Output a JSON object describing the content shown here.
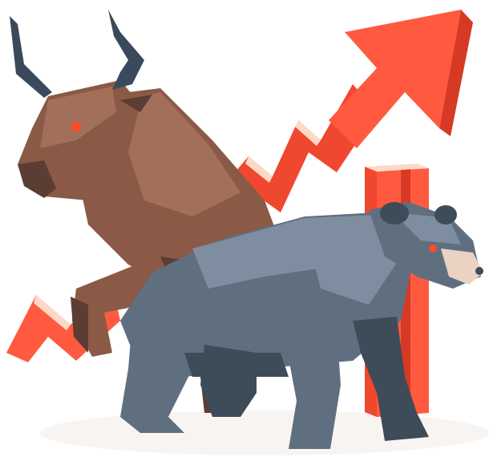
{
  "scene": {
    "subjects": [
      "bull",
      "bear",
      "rising-arrow",
      "bar-column"
    ],
    "colors": {
      "background": "#ffffff",
      "arrow_light": "#ff5a40",
      "arrow_mid": "#f0472f",
      "arrow_dark": "#d63a25",
      "arrow_highlight": "#ffd9c6",
      "bull_light": "#a2705a",
      "bull_mid": "#8a5a47",
      "bull_dark": "#5b3d33",
      "bull_belly": "#c9a08c",
      "horn": "#3a4a5c",
      "bear_light": "#7e8ea0",
      "bear_mid": "#5f6f80",
      "bear_dark": "#3e4b58",
      "bear_snout": "#ead3c3",
      "eye": "#ff4a2a",
      "shadow": "#f3ece7"
    }
  }
}
